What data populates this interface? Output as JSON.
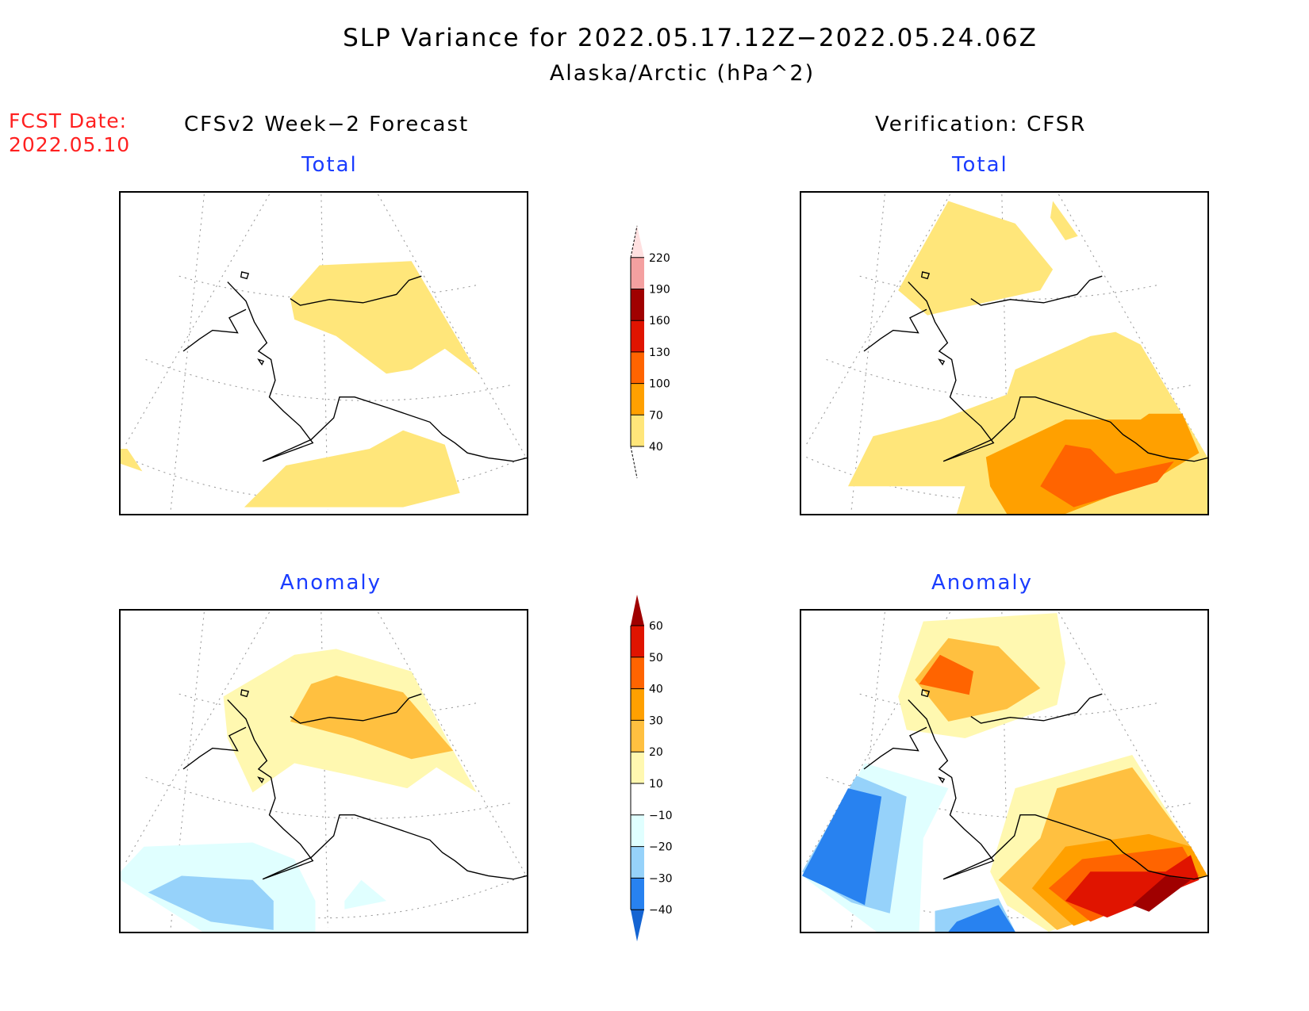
{
  "title": "SLP Variance for 2022.05.17.12Z−2022.05.24.06Z",
  "subtitle": "Alaska/Arctic (hPa^2)",
  "fcst_date_label": "FCST Date:",
  "fcst_date": "2022.05.10",
  "left_header": "CFSv2 Week−2 Forecast",
  "right_header": "Verification: CFSR",
  "row_titles": {
    "total": "Total",
    "anomaly": "Anomaly"
  },
  "colorbars": {
    "total": {
      "levels": [
        "40",
        "70",
        "100",
        "130",
        "160",
        "190",
        "220"
      ],
      "colors": [
        "#ffe67a",
        "#ffa000",
        "#ff6400",
        "#e01400",
        "#a00000",
        "#f4a0a0",
        "#ffe0e0"
      ]
    },
    "anomaly": {
      "levels": [
        "60",
        "50",
        "40",
        "30",
        "20",
        "10",
        "−10",
        "−20",
        "−30",
        "−40"
      ],
      "colors": [
        "#a00000",
        "#e01400",
        "#ff6400",
        "#ffa000",
        "#ffc040",
        "#fff8b0",
        "#ffffff",
        "#e0ffff",
        "#96d2fa",
        "#2882f0",
        "#1464d2"
      ]
    }
  }
}
